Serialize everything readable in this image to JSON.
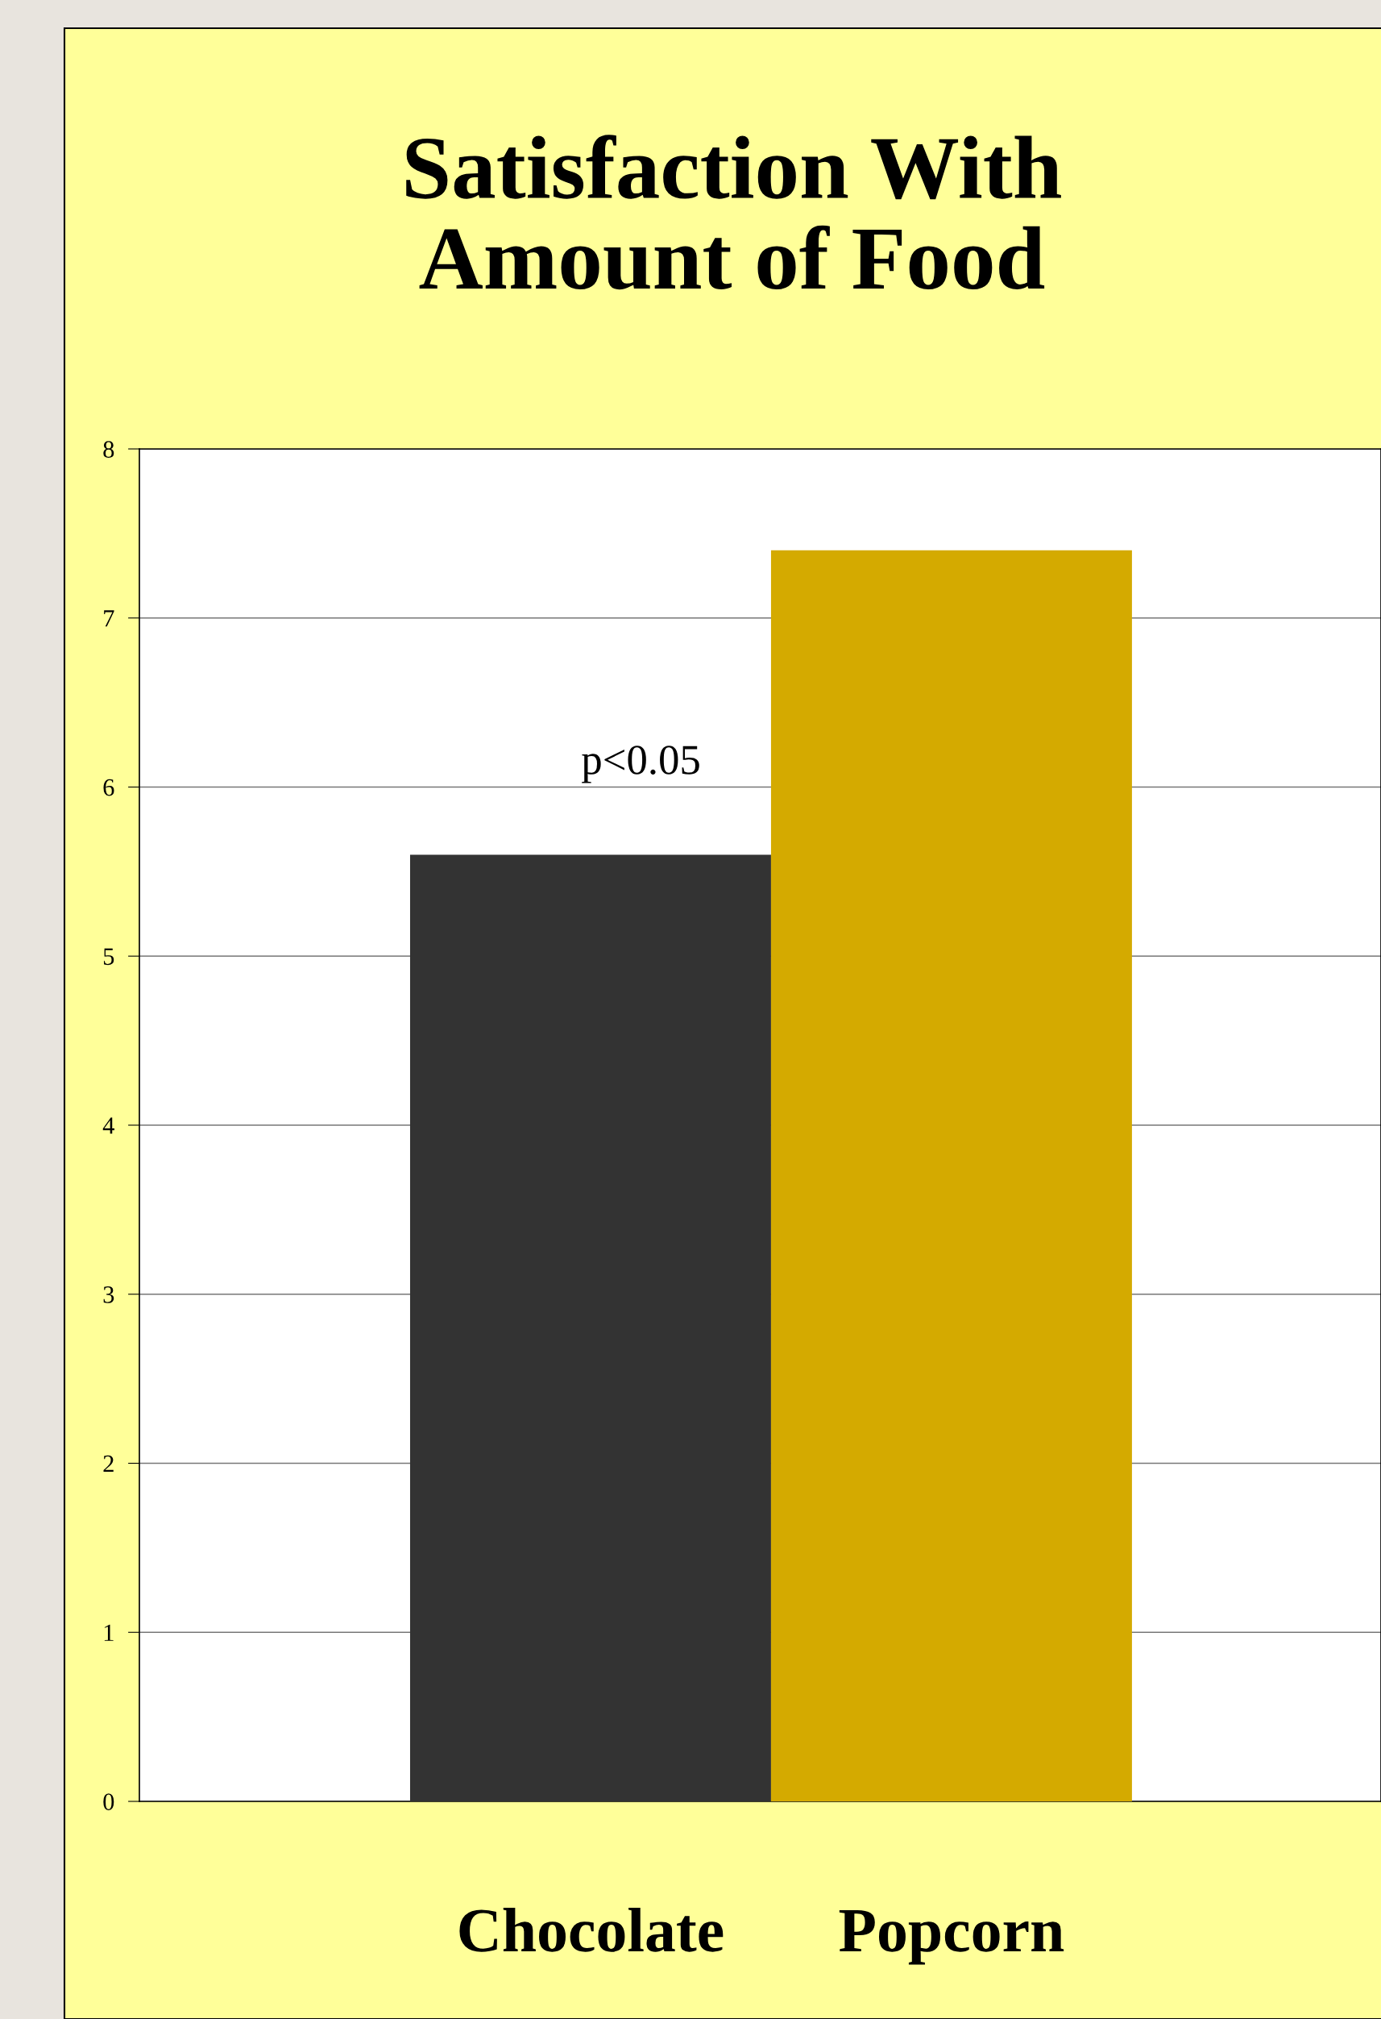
{
  "chart_data": {
    "type": "bar",
    "title": "Satisfaction With\nAmount of Food",
    "categories": [
      "Chocolate",
      "Popcorn"
    ],
    "values": [
      5.6,
      7.4
    ],
    "colors": [
      "#333333",
      "#d4aa00"
    ],
    "ylim": [
      0,
      8
    ],
    "yticks": [
      0,
      1,
      2,
      3,
      4,
      5,
      6,
      7,
      8
    ],
    "grid": "y",
    "annotations": [
      "p<0.05"
    ]
  }
}
